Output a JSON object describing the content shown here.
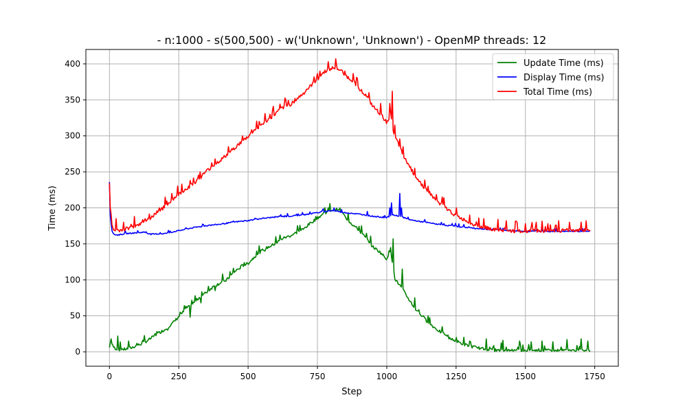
{
  "chart_data": {
    "type": "line",
    "title": "- n:1000 - s(500,500) - w('Unknown', 'Unknown') - OpenMP threads: 12",
    "xlabel": "Step",
    "ylabel": "Time (ms)",
    "xlim": [
      -85,
      1835
    ],
    "ylim": [
      -20,
      420
    ],
    "x_ticks": [
      0,
      250,
      500,
      750,
      1000,
      1250,
      1500,
      1750
    ],
    "y_ticks": [
      0,
      50,
      100,
      150,
      200,
      250,
      300,
      350,
      400
    ],
    "grid": true,
    "legend_position": "upper right",
    "x_max": 1735,
    "series": [
      {
        "name": "Update Time (ms)",
        "color": "#008000",
        "points": [
          [
            0,
            5
          ],
          [
            5,
            18
          ],
          [
            10,
            8
          ],
          [
            20,
            4
          ],
          [
            40,
            2
          ],
          [
            60,
            3
          ],
          [
            80,
            5
          ],
          [
            100,
            8
          ],
          [
            125,
            12
          ],
          [
            150,
            18
          ],
          [
            175,
            25
          ],
          [
            200,
            30
          ],
          [
            225,
            38
          ],
          [
            250,
            48
          ],
          [
            275,
            58
          ],
          [
            300,
            66
          ],
          [
            325,
            75
          ],
          [
            350,
            82
          ],
          [
            375,
            90
          ],
          [
            400,
            95
          ],
          [
            425,
            100
          ],
          [
            450,
            110
          ],
          [
            475,
            118
          ],
          [
            500,
            122
          ],
          [
            525,
            132
          ],
          [
            550,
            140
          ],
          [
            575,
            145
          ],
          [
            600,
            150
          ],
          [
            625,
            157
          ],
          [
            650,
            160
          ],
          [
            675,
            165
          ],
          [
            700,
            170
          ],
          [
            725,
            178
          ],
          [
            750,
            185
          ],
          [
            775,
            192
          ],
          [
            800,
            196
          ],
          [
            820,
            197
          ],
          [
            840,
            192
          ],
          [
            860,
            182
          ],
          [
            880,
            175
          ],
          [
            900,
            168
          ],
          [
            925,
            157
          ],
          [
            950,
            145
          ],
          [
            975,
            138
          ],
          [
            1000,
            128
          ],
          [
            1010,
            140
          ],
          [
            1020,
            125
          ],
          [
            1030,
            100
          ],
          [
            1050,
            90
          ],
          [
            1075,
            75
          ],
          [
            1100,
            60
          ],
          [
            1125,
            50
          ],
          [
            1150,
            40
          ],
          [
            1175,
            32
          ],
          [
            1200,
            25
          ],
          [
            1225,
            18
          ],
          [
            1250,
            14
          ],
          [
            1275,
            10
          ],
          [
            1300,
            7
          ],
          [
            1325,
            5
          ],
          [
            1350,
            3
          ],
          [
            1375,
            2
          ],
          [
            1400,
            1
          ],
          [
            1450,
            1
          ],
          [
            1500,
            1
          ],
          [
            1550,
            1
          ],
          [
            1600,
            1
          ],
          [
            1650,
            1
          ],
          [
            1700,
            1
          ],
          [
            1735,
            1
          ]
        ],
        "spikes": [
          [
            5,
            18
          ],
          [
            30,
            22
          ],
          [
            70,
            15
          ],
          [
            120,
            16
          ],
          [
            170,
            28
          ],
          [
            210,
            30
          ],
          [
            255,
            55
          ],
          [
            290,
            48
          ],
          [
            330,
            68
          ],
          [
            380,
            85
          ],
          [
            420,
            98
          ],
          [
            470,
            115
          ],
          [
            530,
            140
          ],
          [
            560,
            140
          ],
          [
            600,
            160
          ],
          [
            640,
            160
          ],
          [
            700,
            170
          ],
          [
            745,
            188
          ],
          [
            790,
            200
          ],
          [
            830,
            200
          ],
          [
            860,
            192
          ],
          [
            910,
            175
          ],
          [
            1015,
            145
          ],
          [
            1022,
            157
          ],
          [
            1055,
            115
          ],
          [
            1100,
            75
          ],
          [
            1150,
            50
          ],
          [
            1200,
            35
          ],
          [
            1250,
            20
          ],
          [
            1300,
            15
          ],
          [
            1360,
            18
          ],
          [
            1420,
            16
          ],
          [
            1480,
            15
          ],
          [
            1520,
            14
          ],
          [
            1560,
            15
          ],
          [
            1600,
            14
          ],
          [
            1650,
            17
          ],
          [
            1700,
            18
          ],
          [
            1725,
            15
          ]
        ]
      },
      {
        "name": "Display Time (ms)",
        "color": "#0000ff",
        "points": [
          [
            0,
            235
          ],
          [
            3,
            190
          ],
          [
            8,
            170
          ],
          [
            15,
            163
          ],
          [
            30,
            162
          ],
          [
            60,
            164
          ],
          [
            100,
            165
          ],
          [
            125,
            166
          ],
          [
            150,
            163
          ],
          [
            200,
            164
          ],
          [
            250,
            168
          ],
          [
            300,
            172
          ],
          [
            350,
            175
          ],
          [
            400,
            177
          ],
          [
            450,
            180
          ],
          [
            500,
            182
          ],
          [
            550,
            185
          ],
          [
            600,
            187
          ],
          [
            650,
            188
          ],
          [
            700,
            190
          ],
          [
            750,
            193
          ],
          [
            800,
            196
          ],
          [
            850,
            193
          ],
          [
            900,
            191
          ],
          [
            950,
            188
          ],
          [
            1000,
            186
          ],
          [
            1020,
            190
          ],
          [
            1050,
            188
          ],
          [
            1075,
            184
          ],
          [
            1100,
            182
          ],
          [
            1150,
            179
          ],
          [
            1200,
            176
          ],
          [
            1250,
            174
          ],
          [
            1300,
            172
          ],
          [
            1350,
            170
          ],
          [
            1400,
            169
          ],
          [
            1450,
            168
          ],
          [
            1500,
            167
          ],
          [
            1550,
            167
          ],
          [
            1600,
            167
          ],
          [
            1650,
            167
          ],
          [
            1700,
            167
          ],
          [
            1735,
            167
          ]
        ],
        "spikes": [
          [
            1012,
            200
          ],
          [
            1016,
            207
          ],
          [
            1048,
            220
          ],
          [
            1052,
            200
          ],
          [
            930,
            195
          ],
          [
            810,
            200
          ]
        ]
      },
      {
        "name": "Total Time (ms)",
        "color": "#ff0000",
        "points": [
          [
            0,
            235
          ],
          [
            3,
            200
          ],
          [
            8,
            175
          ],
          [
            15,
            168
          ],
          [
            40,
            168
          ],
          [
            80,
            172
          ],
          [
            120,
            178
          ],
          [
            150,
            185
          ],
          [
            175,
            195
          ],
          [
            200,
            200
          ],
          [
            225,
            210
          ],
          [
            250,
            218
          ],
          [
            275,
            225
          ],
          [
            300,
            232
          ],
          [
            325,
            240
          ],
          [
            350,
            250
          ],
          [
            375,
            258
          ],
          [
            400,
            265
          ],
          [
            425,
            273
          ],
          [
            450,
            282
          ],
          [
            475,
            290
          ],
          [
            500,
            298
          ],
          [
            525,
            308
          ],
          [
            550,
            315
          ],
          [
            575,
            322
          ],
          [
            600,
            330
          ],
          [
            625,
            338
          ],
          [
            650,
            342
          ],
          [
            675,
            350
          ],
          [
            700,
            358
          ],
          [
            725,
            368
          ],
          [
            750,
            378
          ],
          [
            775,
            388
          ],
          [
            800,
            393
          ],
          [
            820,
            393
          ],
          [
            840,
            388
          ],
          [
            860,
            380
          ],
          [
            880,
            375
          ],
          [
            900,
            365
          ],
          [
            925,
            355
          ],
          [
            950,
            340
          ],
          [
            975,
            330
          ],
          [
            1000,
            318
          ],
          [
            1015,
            330
          ],
          [
            1025,
            300
          ],
          [
            1040,
            290
          ],
          [
            1060,
            270
          ],
          [
            1080,
            258
          ],
          [
            1100,
            245
          ],
          [
            1125,
            232
          ],
          [
            1150,
            222
          ],
          [
            1175,
            210
          ],
          [
            1200,
            203
          ],
          [
            1225,
            195
          ],
          [
            1250,
            188
          ],
          [
            1275,
            183
          ],
          [
            1300,
            178
          ],
          [
            1325,
            175
          ],
          [
            1350,
            172
          ],
          [
            1375,
            170
          ],
          [
            1400,
            168
          ],
          [
            1450,
            167
          ],
          [
            1500,
            166
          ],
          [
            1550,
            167
          ],
          [
            1600,
            167
          ],
          [
            1650,
            168
          ],
          [
            1700,
            168
          ],
          [
            1735,
            168
          ]
        ],
        "spikes": [
          [
            3,
            200
          ],
          [
            25,
            185
          ],
          [
            50,
            180
          ],
          [
            90,
            188
          ],
          [
            130,
            185
          ],
          [
            180,
            200
          ],
          [
            225,
            220
          ],
          [
            260,
            233
          ],
          [
            290,
            238
          ],
          [
            328,
            250
          ],
          [
            380,
            268
          ],
          [
            430,
            285
          ],
          [
            480,
            300
          ],
          [
            540,
            320
          ],
          [
            580,
            330
          ],
          [
            620,
            340
          ],
          [
            670,
            352
          ],
          [
            710,
            365
          ],
          [
            760,
            390
          ],
          [
            790,
            403
          ],
          [
            820,
            398
          ],
          [
            850,
            390
          ],
          [
            895,
            380
          ],
          [
            935,
            360
          ],
          [
            978,
            345
          ],
          [
            1012,
            345
          ],
          [
            1020,
            362
          ],
          [
            1030,
            315
          ],
          [
            1060,
            285
          ],
          [
            1100,
            255
          ],
          [
            1150,
            230
          ],
          [
            1200,
            215
          ],
          [
            1250,
            200
          ],
          [
            1300,
            190
          ],
          [
            1350,
            185
          ],
          [
            1400,
            184
          ],
          [
            1430,
            182
          ],
          [
            1470,
            180
          ],
          [
            1500,
            178
          ],
          [
            1540,
            180
          ],
          [
            1580,
            178
          ],
          [
            1620,
            182
          ],
          [
            1660,
            180
          ],
          [
            1700,
            180
          ],
          [
            1720,
            182
          ]
        ]
      }
    ]
  }
}
